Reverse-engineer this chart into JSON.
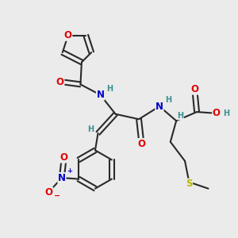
{
  "bg_color": "#ebebeb",
  "bond_color": "#2a2a2a",
  "bond_width": 1.5,
  "atom_colors": {
    "O": "#e00000",
    "N": "#0000cc",
    "S": "#b8b800",
    "C": "#2a2a2a",
    "H": "#3a9090"
  },
  "font_size_atom": 8.5,
  "font_size_h": 7.0,
  "font_size_charge": 6.0
}
